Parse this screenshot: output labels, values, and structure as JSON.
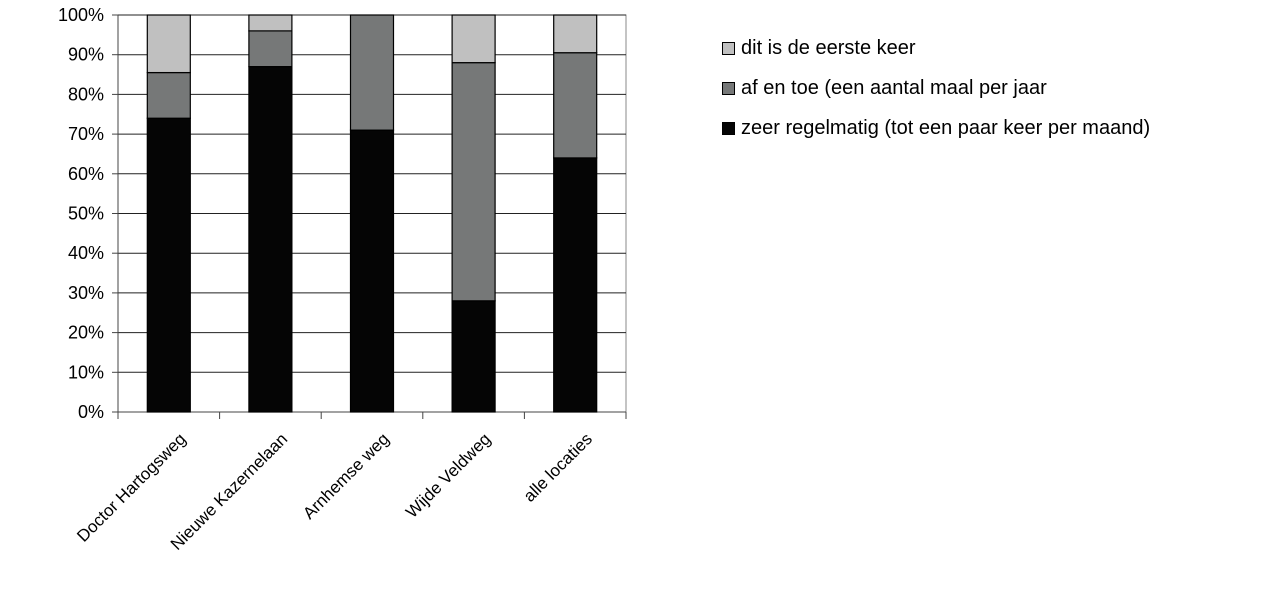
{
  "chart_data": {
    "type": "bar",
    "stacked": true,
    "categories": [
      "Doctor Hartogsweg",
      "Nieuwe Kazernelaan",
      "Arnhemse weg",
      "Wijde Veldweg",
      "alle locaties"
    ],
    "series": [
      {
        "name": "zeer regelmatig (tot een paar keer per maand)",
        "color": "#050505",
        "values": [
          74,
          87,
          71,
          28,
          64
        ]
      },
      {
        "name": "af en toe (een aantal maal per jaar",
        "color": "#767878",
        "values": [
          11.5,
          9,
          29,
          60,
          26.5
        ]
      },
      {
        "name": "dit is de eerste keer",
        "color": "#c0c0c0",
        "values": [
          14.5,
          4,
          0,
          12,
          9.5
        ]
      }
    ],
    "yticks": [
      "0%",
      "10%",
      "20%",
      "30%",
      "40%",
      "50%",
      "60%",
      "70%",
      "80%",
      "90%",
      "100%"
    ],
    "ylim": [
      0,
      100
    ],
    "grid": true,
    "legend_position": "right"
  },
  "legend": {
    "items": [
      {
        "label": "dit is de eerste keer",
        "color": "#c0c0c0"
      },
      {
        "label": "af en toe (een aantal maal per jaar",
        "color": "#767878"
      },
      {
        "label": "zeer regelmatig (tot een paar keer per maand)",
        "color": "#050505"
      }
    ]
  }
}
